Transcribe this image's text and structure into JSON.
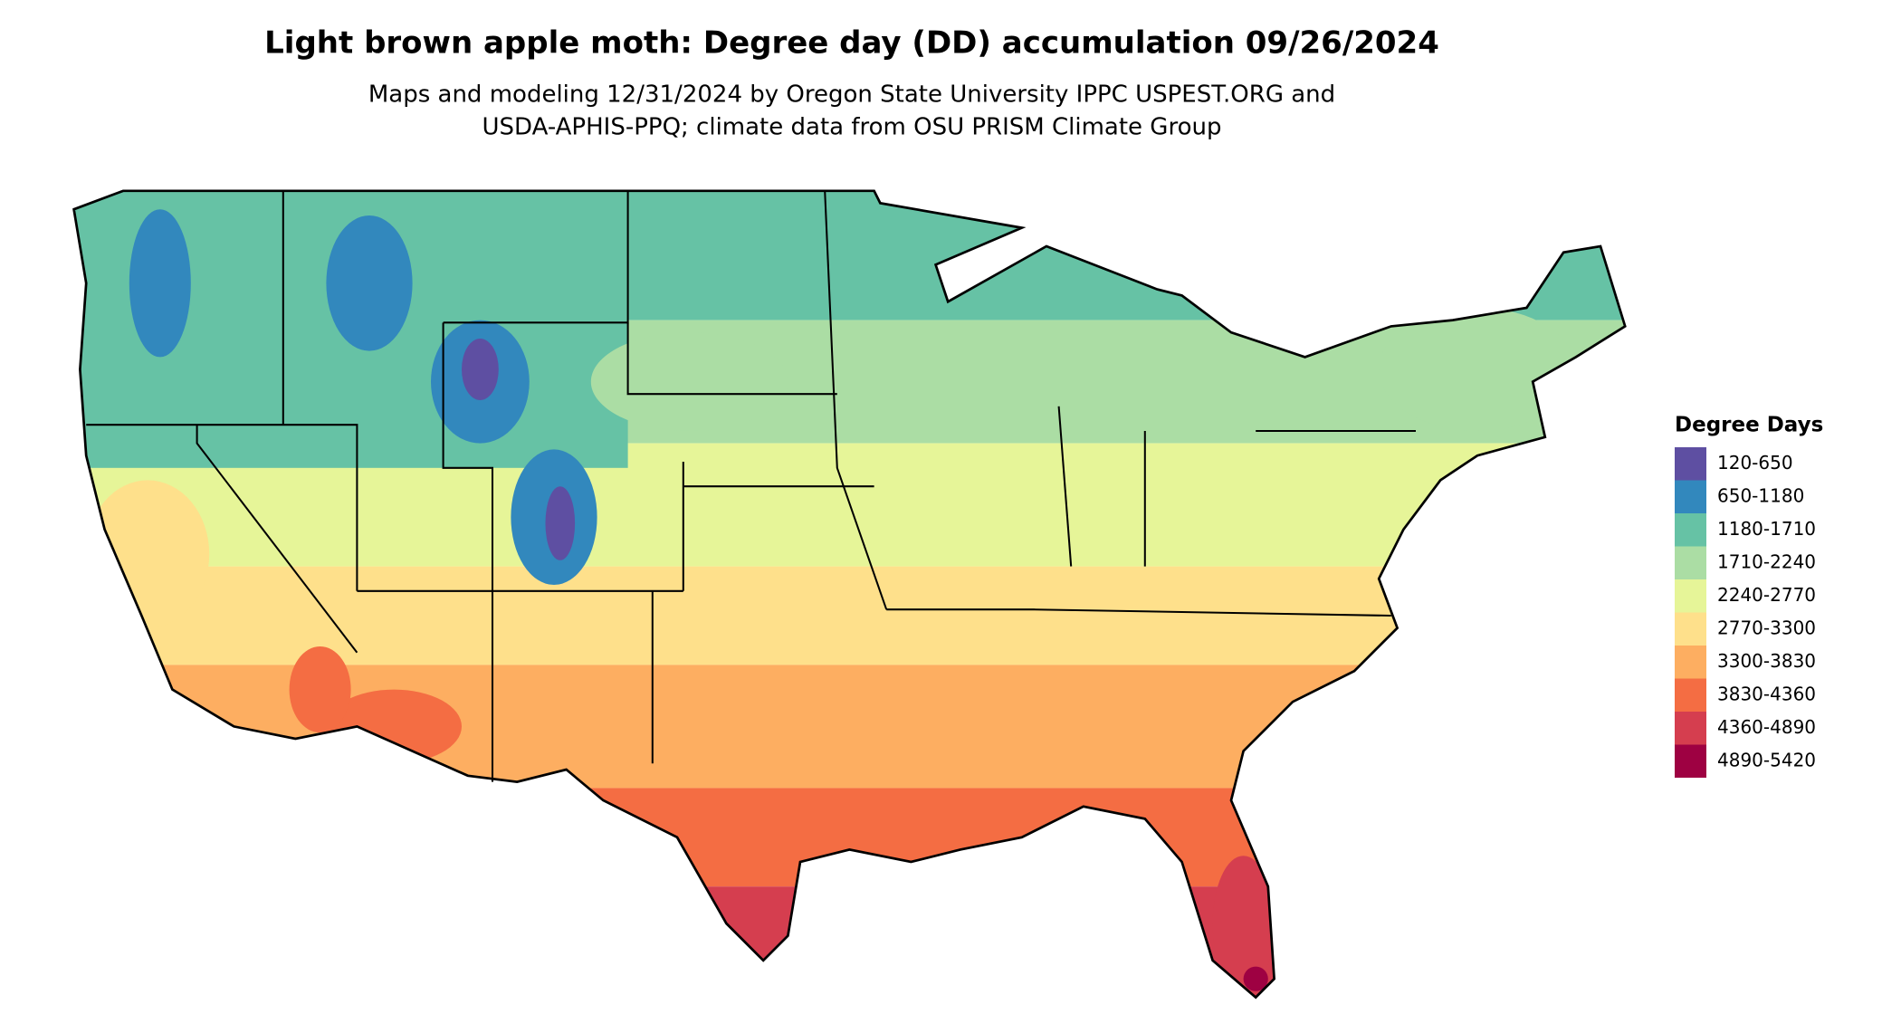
{
  "header": {
    "title": "Light brown apple moth: Degree day (DD) accumulation 09/26/2024",
    "subtitle": [
      "Maps and modeling 12/31/2024 by Oregon State University IPPC USPEST.ORG and",
      "USDA-APHIS-PPQ; climate data from OSU PRISM Climate Group"
    ]
  },
  "legend": {
    "title": "Degree Days",
    "items": [
      {
        "label": "120-650",
        "color": "#5e4fa2"
      },
      {
        "label": "650-1180",
        "color": "#3288bd"
      },
      {
        "label": "1180-1710",
        "color": "#66c2a5"
      },
      {
        "label": "1710-2240",
        "color": "#abdda4"
      },
      {
        "label": "2240-2770",
        "color": "#e6f598"
      },
      {
        "label": "2770-3300",
        "color": "#fee08b"
      },
      {
        "label": "3300-3830",
        "color": "#fdae61"
      },
      {
        "label": "3830-4360",
        "color": "#f46d43"
      },
      {
        "label": "4360-4890",
        "color": "#d53e4f"
      },
      {
        "label": "4890-5420",
        "color": "#9e0142"
      }
    ]
  }
}
